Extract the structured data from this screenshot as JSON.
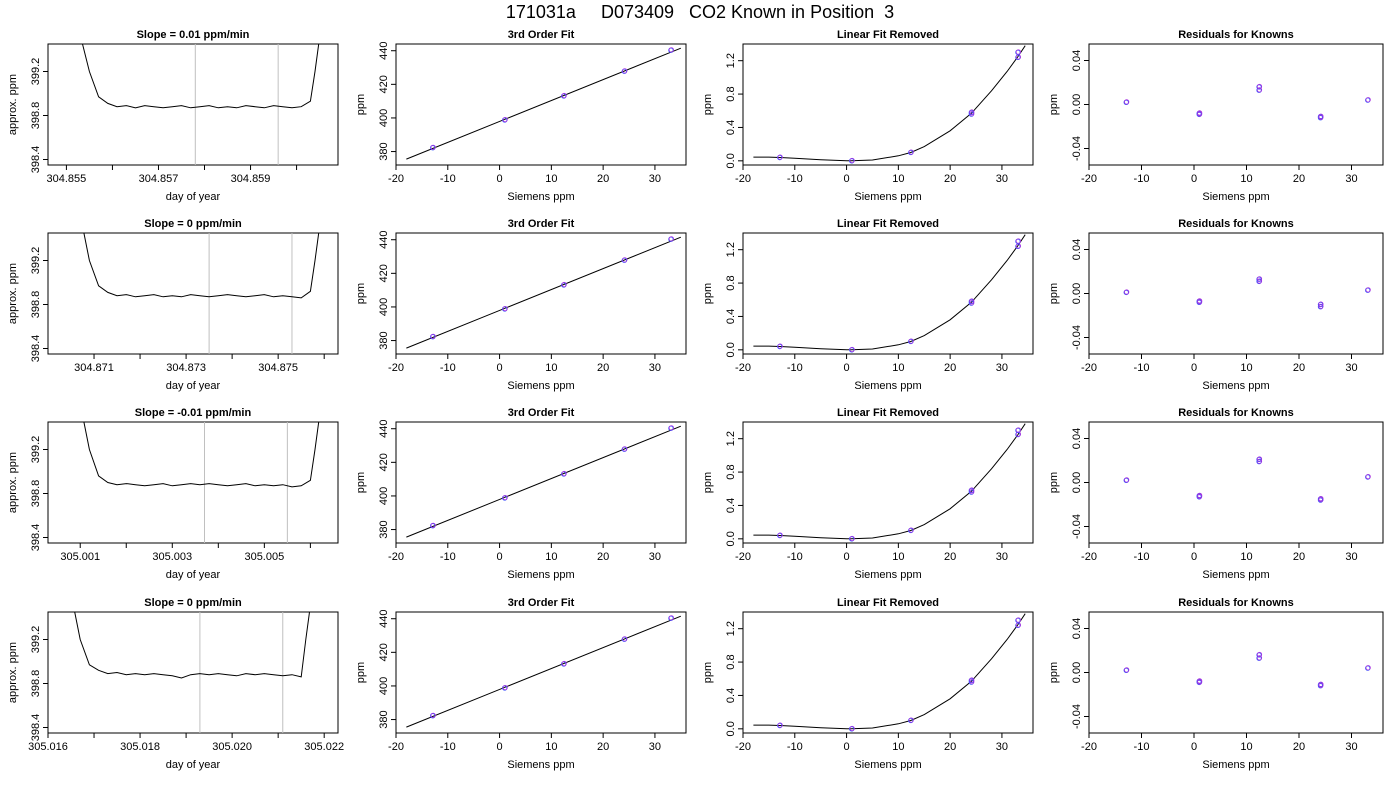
{
  "figure": {
    "title": "171031a     D073409   CO2 Known in Position  3"
  },
  "chart_data": [
    {
      "type": "line",
      "title": "Slope =  0.01  ppm/min",
      "xlabel": "day of year",
      "ylabel": "approx. ppm",
      "xlim": [
        304.8546,
        304.8609
      ],
      "ylim": [
        398.35,
        399.45
      ],
      "xticks": [
        "304.855",
        "304.857",
        "304.859"
      ],
      "yticks": [
        "398.4",
        "398.8",
        "399.2"
      ],
      "minor_xticks": [
        304.856,
        304.858,
        304.86
      ],
      "vlines": [
        304.8578,
        304.8596
      ],
      "x": [
        304.85535,
        304.8555,
        304.8557,
        304.8559,
        304.8561,
        304.8563,
        304.8565,
        304.8567,
        304.8569,
        304.8571,
        304.8573,
        304.8575,
        304.8577,
        304.8579,
        304.8581,
        304.8583,
        304.8585,
        304.8587,
        304.8589,
        304.8591,
        304.8593,
        304.8595,
        304.8597,
        304.8599,
        304.8601,
        304.8603,
        304.8604,
        304.86048
      ],
      "y": [
        399.45,
        399.2,
        398.97,
        398.91,
        398.88,
        398.89,
        398.87,
        398.89,
        398.88,
        398.87,
        398.88,
        398.89,
        398.87,
        398.88,
        398.89,
        398.87,
        398.88,
        398.87,
        398.89,
        398.88,
        398.87,
        398.89,
        398.88,
        398.87,
        398.88,
        398.93,
        399.2,
        399.45
      ]
    },
    {
      "type": "scatter",
      "title": "3rd Order Fit",
      "xlabel": "Siemens ppm",
      "ylabel": "ppm",
      "xlim": [
        -20,
        36
      ],
      "ylim": [
        372,
        444
      ],
      "xticks": [
        "-20",
        "-10",
        "0",
        "10",
        "20",
        "30"
      ],
      "yticks": [
        "380",
        "400",
        "420",
        "440"
      ],
      "fit_line": {
        "x": [
          -18,
          35
        ],
        "y": [
          375.5,
          441.5
        ]
      },
      "points": [
        {
          "x": -12.9,
          "y": 382.3
        },
        {
          "x": 1,
          "y": 398.8
        },
        {
          "x": 12.4,
          "y": 413.1
        },
        {
          "x": 24.1,
          "y": 427.8
        },
        {
          "x": 33.1,
          "y": 440.3
        }
      ]
    },
    {
      "type": "scatter",
      "title": "Linear Fit Removed",
      "xlabel": "Siemens ppm",
      "ylabel": "ppm",
      "xlim": [
        -20,
        36
      ],
      "ylim": [
        -0.05,
        1.4
      ],
      "xticks": [
        "-20",
        "-10",
        "0",
        "10",
        "20",
        "30"
      ],
      "yticks": [
        "0.0",
        "0.4",
        "0.8",
        "1.2"
      ],
      "fit_curve": {
        "x": [
          -18,
          -15,
          -12.9,
          -10,
          -5,
          0,
          1,
          5,
          10,
          12.4,
          15,
          20,
          24.1,
          28,
          31,
          33.1,
          34.5
        ],
        "y": [
          0.045,
          0.045,
          0.04,
          0.03,
          0.012,
          0.0,
          0.0,
          0.01,
          0.06,
          0.1,
          0.17,
          0.36,
          0.57,
          0.84,
          1.07,
          1.25,
          1.38
        ]
      },
      "points": [
        {
          "x": -12.9,
          "y": 0.04
        },
        {
          "x": 1,
          "y": 0.0
        },
        {
          "x": 12.4,
          "y": 0.1
        },
        {
          "x": 24.1,
          "y": 0.56
        },
        {
          "x": 24.1,
          "y": 0.58
        },
        {
          "x": 33.1,
          "y": 1.24
        },
        {
          "x": 33.1,
          "y": 1.3
        }
      ]
    },
    {
      "type": "scatter",
      "title": "Residuals for Knowns",
      "xlabel": "Siemens ppm",
      "ylabel": "ppm",
      "xlim": [
        -20,
        36
      ],
      "ylim": [
        -0.055,
        0.055
      ],
      "xticks": [
        "-20",
        "-10",
        "0",
        "10",
        "20",
        "30"
      ],
      "yticks": [
        "-0.04",
        "0.00",
        "0.04"
      ],
      "points": [
        {
          "x": -12.9,
          "y": 0.002
        },
        {
          "x": 1,
          "y": -0.008
        },
        {
          "x": 1,
          "y": -0.009
        },
        {
          "x": 12.4,
          "y": 0.013
        },
        {
          "x": 12.4,
          "y": 0.016
        },
        {
          "x": 24.1,
          "y": -0.011
        },
        {
          "x": 24.1,
          "y": -0.012
        },
        {
          "x": 33.1,
          "y": 0.004
        }
      ]
    },
    {
      "type": "line",
      "title": "Slope =  0  ppm/min",
      "xlabel": "day of year",
      "ylabel": "approx. ppm",
      "xlim": [
        304.87,
        304.8763
      ],
      "ylim": [
        398.35,
        399.45
      ],
      "xticks": [
        "304.871",
        "304.873",
        "304.875"
      ],
      "yticks": [
        "398.4",
        "398.8",
        "399.2"
      ],
      "minor_xticks": [
        304.872,
        304.874,
        304.876
      ],
      "vlines": [
        304.8735,
        304.8753
      ],
      "x": [
        304.87078,
        304.8709,
        304.8711,
        304.8713,
        304.8715,
        304.8717,
        304.8719,
        304.8721,
        304.8723,
        304.8725,
        304.8727,
        304.8729,
        304.8731,
        304.8733,
        304.8735,
        304.8737,
        304.8739,
        304.8741,
        304.8743,
        304.8745,
        304.8747,
        304.8749,
        304.8751,
        304.8753,
        304.8755,
        304.8757,
        304.8758,
        304.87588
      ],
      "y": [
        399.45,
        399.2,
        398.97,
        398.91,
        398.88,
        398.89,
        398.87,
        398.88,
        398.89,
        398.87,
        398.88,
        398.87,
        398.89,
        398.88,
        398.87,
        398.88,
        398.89,
        398.88,
        398.87,
        398.88,
        398.89,
        398.87,
        398.88,
        398.87,
        398.86,
        398.92,
        399.2,
        399.45
      ]
    },
    {
      "type": "scatter",
      "title": "3rd Order Fit",
      "xlabel": "Siemens ppm",
      "ylabel": "ppm",
      "xlim": [
        -20,
        36
      ],
      "ylim": [
        372,
        444
      ],
      "xticks": [
        "-20",
        "-10",
        "0",
        "10",
        "20",
        "30"
      ],
      "yticks": [
        "380",
        "400",
        "420",
        "440"
      ],
      "fit_line": {
        "x": [
          -18,
          35
        ],
        "y": [
          375.5,
          441.5
        ]
      },
      "points": [
        {
          "x": -12.9,
          "y": 382.3
        },
        {
          "x": 1,
          "y": 398.8
        },
        {
          "x": 12.4,
          "y": 413.1
        },
        {
          "x": 24.1,
          "y": 427.8
        },
        {
          "x": 33.1,
          "y": 440.3
        }
      ]
    },
    {
      "type": "scatter",
      "title": "Linear Fit Removed",
      "xlabel": "Siemens ppm",
      "ylabel": "ppm",
      "xlim": [
        -20,
        36
      ],
      "ylim": [
        -0.05,
        1.4
      ],
      "xticks": [
        "-20",
        "-10",
        "0",
        "10",
        "20",
        "30"
      ],
      "yticks": [
        "0.0",
        "0.4",
        "0.8",
        "1.2"
      ],
      "fit_curve": {
        "x": [
          -18,
          -15,
          -12.9,
          -10,
          -5,
          0,
          1,
          5,
          10,
          12.4,
          15,
          20,
          24.1,
          28,
          31,
          33.1,
          34.5
        ],
        "y": [
          0.045,
          0.045,
          0.04,
          0.03,
          0.012,
          0.0,
          0.0,
          0.01,
          0.06,
          0.1,
          0.17,
          0.36,
          0.57,
          0.84,
          1.07,
          1.25,
          1.38
        ]
      },
      "points": [
        {
          "x": -12.9,
          "y": 0.04
        },
        {
          "x": 1,
          "y": 0.0
        },
        {
          "x": 12.4,
          "y": 0.1
        },
        {
          "x": 24.1,
          "y": 0.56
        },
        {
          "x": 24.1,
          "y": 0.58
        },
        {
          "x": 33.1,
          "y": 1.24
        },
        {
          "x": 33.1,
          "y": 1.3
        }
      ]
    },
    {
      "type": "scatter",
      "title": "Residuals for Knowns",
      "xlabel": "Siemens ppm",
      "ylabel": "ppm",
      "xlim": [
        -20,
        36
      ],
      "ylim": [
        -0.055,
        0.055
      ],
      "xticks": [
        "-20",
        "-10",
        "0",
        "10",
        "20",
        "30"
      ],
      "yticks": [
        "-0.04",
        "0.00",
        "0.04"
      ],
      "points": [
        {
          "x": -12.9,
          "y": 0.001
        },
        {
          "x": 1,
          "y": -0.007
        },
        {
          "x": 1,
          "y": -0.008
        },
        {
          "x": 12.4,
          "y": 0.011
        },
        {
          "x": 12.4,
          "y": 0.013
        },
        {
          "x": 24.1,
          "y": -0.01
        },
        {
          "x": 24.1,
          "y": -0.012
        },
        {
          "x": 33.1,
          "y": 0.003
        }
      ]
    },
    {
      "type": "line",
      "title": "Slope =  -0.01  ppm/min",
      "xlabel": "day of year",
      "ylabel": "approx. ppm",
      "xlim": [
        305.0003,
        305.0066
      ],
      "ylim": [
        398.35,
        399.45
      ],
      "xticks": [
        "305.001",
        "305.003",
        "305.005"
      ],
      "yticks": [
        "398.4",
        "398.8",
        "399.2"
      ],
      "minor_xticks": [
        305.002,
        305.004,
        305.006
      ],
      "vlines": [
        305.0037,
        305.0055
      ],
      "x": [
        305.00108,
        305.0012,
        305.0014,
        305.0016,
        305.0018,
        305.002,
        305.0022,
        305.0024,
        305.0026,
        305.0028,
        305.003,
        305.0032,
        305.0034,
        305.0036,
        305.0038,
        305.004,
        305.0042,
        305.0044,
        305.0046,
        305.0048,
        305.005,
        305.0052,
        305.0054,
        305.0056,
        305.0058,
        305.006,
        305.0061,
        305.00618
      ],
      "y": [
        399.45,
        399.2,
        398.96,
        398.9,
        398.88,
        398.89,
        398.88,
        398.87,
        398.88,
        398.89,
        398.87,
        398.88,
        398.89,
        398.88,
        398.89,
        398.88,
        398.87,
        398.88,
        398.89,
        398.87,
        398.88,
        398.87,
        398.88,
        398.86,
        398.87,
        398.92,
        399.2,
        399.45
      ]
    },
    {
      "type": "scatter",
      "title": "3rd Order Fit",
      "xlabel": "Siemens ppm",
      "ylabel": "ppm",
      "xlim": [
        -20,
        36
      ],
      "ylim": [
        372,
        444
      ],
      "xticks": [
        "-20",
        "-10",
        "0",
        "10",
        "20",
        "30"
      ],
      "yticks": [
        "380",
        "400",
        "420",
        "440"
      ],
      "fit_line": {
        "x": [
          -18,
          35
        ],
        "y": [
          375.5,
          441.5
        ]
      },
      "points": [
        {
          "x": -12.9,
          "y": 382.3
        },
        {
          "x": 1,
          "y": 398.8
        },
        {
          "x": 12.4,
          "y": 413.1
        },
        {
          "x": 24.1,
          "y": 427.8
        },
        {
          "x": 33.1,
          "y": 440.3
        }
      ]
    },
    {
      "type": "scatter",
      "title": "Linear Fit Removed",
      "xlabel": "Siemens ppm",
      "ylabel": "ppm",
      "xlim": [
        -20,
        36
      ],
      "ylim": [
        -0.05,
        1.4
      ],
      "xticks": [
        "-20",
        "-10",
        "0",
        "10",
        "20",
        "30"
      ],
      "yticks": [
        "0.0",
        "0.4",
        "0.8",
        "1.2"
      ],
      "fit_curve": {
        "x": [
          -18,
          -15,
          -12.9,
          -10,
          -5,
          0,
          1,
          5,
          10,
          12.4,
          15,
          20,
          24.1,
          28,
          31,
          33.1,
          34.5
        ],
        "y": [
          0.045,
          0.045,
          0.04,
          0.03,
          0.012,
          0.0,
          0.0,
          0.01,
          0.06,
          0.1,
          0.17,
          0.36,
          0.57,
          0.84,
          1.07,
          1.25,
          1.38
        ]
      },
      "points": [
        {
          "x": -12.9,
          "y": 0.04
        },
        {
          "x": 1,
          "y": 0.0
        },
        {
          "x": 12.4,
          "y": 0.1
        },
        {
          "x": 24.1,
          "y": 0.56
        },
        {
          "x": 24.1,
          "y": 0.58
        },
        {
          "x": 33.1,
          "y": 1.25
        },
        {
          "x": 33.1,
          "y": 1.3
        }
      ]
    },
    {
      "type": "scatter",
      "title": "Residuals for Knowns",
      "xlabel": "Siemens ppm",
      "ylabel": "ppm",
      "xlim": [
        -20,
        36
      ],
      "ylim": [
        -0.055,
        0.055
      ],
      "xticks": [
        "-20",
        "-10",
        "0",
        "10",
        "20",
        "30"
      ],
      "yticks": [
        "-0.04",
        "0.00",
        "0.04"
      ],
      "points": [
        {
          "x": -12.9,
          "y": 0.002
        },
        {
          "x": 1,
          "y": -0.012
        },
        {
          "x": 1,
          "y": -0.013
        },
        {
          "x": 12.4,
          "y": 0.019
        },
        {
          "x": 12.4,
          "y": 0.021
        },
        {
          "x": 24.1,
          "y": -0.015
        },
        {
          "x": 24.1,
          "y": -0.016
        },
        {
          "x": 33.1,
          "y": 0.005
        }
      ]
    },
    {
      "type": "line",
      "title": "Slope =  0  ppm/min",
      "xlabel": "day of year",
      "ylabel": "approx. ppm",
      "xlim": [
        305.016,
        305.0223
      ],
      "ylim": [
        398.35,
        399.45
      ],
      "xticks": [
        "305.016",
        "305.018",
        "305.020",
        "305.022"
      ],
      "yticks": [
        "398.4",
        "398.8",
        "399.2"
      ],
      "minor_xticks": [
        305.017,
        305.019,
        305.021
      ],
      "vlines": [
        305.0193,
        305.0211
      ],
      "x": [
        305.01658,
        305.0167,
        305.0169,
        305.0171,
        305.0173,
        305.0175,
        305.0177,
        305.0179,
        305.0181,
        305.0183,
        305.0185,
        305.0187,
        305.0189,
        305.0191,
        305.0193,
        305.0195,
        305.0197,
        305.0199,
        305.0201,
        305.0203,
        305.0205,
        305.0207,
        305.0209,
        305.0211,
        305.0213,
        305.0215,
        305.0216,
        305.02168
      ],
      "y": [
        399.45,
        399.2,
        398.97,
        398.92,
        398.89,
        398.9,
        398.88,
        398.89,
        398.88,
        398.89,
        398.88,
        398.87,
        398.85,
        398.88,
        398.89,
        398.88,
        398.89,
        398.88,
        398.87,
        398.89,
        398.88,
        398.89,
        398.88,
        398.87,
        398.88,
        398.86,
        399.2,
        399.45
      ]
    },
    {
      "type": "scatter",
      "title": "3rd Order Fit",
      "xlabel": "Siemens ppm",
      "ylabel": "ppm",
      "xlim": [
        -20,
        36
      ],
      "ylim": [
        372,
        444
      ],
      "xticks": [
        "-20",
        "-10",
        "0",
        "10",
        "20",
        "30"
      ],
      "yticks": [
        "380",
        "400",
        "420",
        "440"
      ],
      "fit_line": {
        "x": [
          -18,
          35
        ],
        "y": [
          375.5,
          441.5
        ]
      },
      "points": [
        {
          "x": -12.9,
          "y": 382.3
        },
        {
          "x": 1,
          "y": 398.8
        },
        {
          "x": 12.4,
          "y": 413.1
        },
        {
          "x": 24.1,
          "y": 427.8
        },
        {
          "x": 33.1,
          "y": 440.3
        }
      ]
    },
    {
      "type": "scatter",
      "title": "Linear Fit Removed",
      "xlabel": "Siemens ppm",
      "ylabel": "ppm",
      "xlim": [
        -20,
        36
      ],
      "ylim": [
        -0.05,
        1.4
      ],
      "xticks": [
        "-20",
        "-10",
        "0",
        "10",
        "20",
        "30"
      ],
      "yticks": [
        "0.0",
        "0.4",
        "0.8",
        "1.2"
      ],
      "fit_curve": {
        "x": [
          -18,
          -15,
          -12.9,
          -10,
          -5,
          0,
          1,
          5,
          10,
          12.4,
          15,
          20,
          24.1,
          28,
          31,
          33.1,
          34.5
        ],
        "y": [
          0.045,
          0.045,
          0.04,
          0.03,
          0.012,
          0.0,
          0.0,
          0.01,
          0.06,
          0.1,
          0.17,
          0.36,
          0.57,
          0.84,
          1.07,
          1.25,
          1.38
        ]
      },
      "points": [
        {
          "x": -12.9,
          "y": 0.04
        },
        {
          "x": 1,
          "y": 0.0
        },
        {
          "x": 12.4,
          "y": 0.1
        },
        {
          "x": 24.1,
          "y": 0.56
        },
        {
          "x": 24.1,
          "y": 0.58
        },
        {
          "x": 33.1,
          "y": 1.24
        },
        {
          "x": 33.1,
          "y": 1.3
        }
      ]
    },
    {
      "type": "scatter",
      "title": "Residuals for Knowns",
      "xlabel": "Siemens ppm",
      "ylabel": "ppm",
      "xlim": [
        -20,
        36
      ],
      "ylim": [
        -0.055,
        0.055
      ],
      "xticks": [
        "-20",
        "-10",
        "0",
        "10",
        "20",
        "30"
      ],
      "yticks": [
        "-0.04",
        "0.00",
        "0.04"
      ],
      "points": [
        {
          "x": -12.9,
          "y": 0.002
        },
        {
          "x": 1,
          "y": -0.008
        },
        {
          "x": 1,
          "y": -0.009
        },
        {
          "x": 12.4,
          "y": 0.013
        },
        {
          "x": 12.4,
          "y": 0.016
        },
        {
          "x": 24.1,
          "y": -0.011
        },
        {
          "x": 24.1,
          "y": -0.012
        },
        {
          "x": 33.1,
          "y": 0.004
        }
      ]
    }
  ],
  "colors": {
    "axis": "#000000",
    "vline": "#c0c0c0",
    "point_a": "#3355ff",
    "point_b": "#aa33dd",
    "fit": "#000000"
  }
}
